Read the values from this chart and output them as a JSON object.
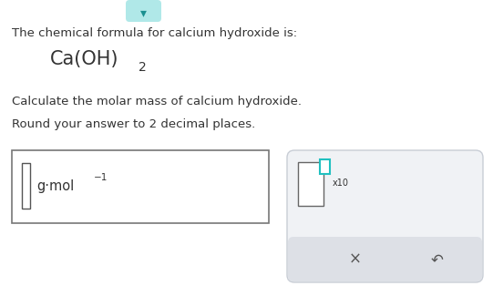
{
  "bg_color": "#ffffff",
  "text_color": "#333333",
  "line1": "The chemical formula for calcium hydroxide is:",
  "formula_main": "Ca(OH)",
  "formula_sub": "2",
  "line3": "Calculate the molar mass of calcium hydroxide.",
  "line4": "Round your answer to 2 decimal places.",
  "unit_text": "g·mol",
  "unit_exp": "−1",
  "x_symbol": "×",
  "undo_symbol": "↶",
  "x10_label": "x10",
  "teal_color": "#20c0c0",
  "gray_color": "#e0e0e0",
  "box_border": "#888888",
  "right_bg": "#f0f2f5",
  "right_border": "#c8cdd5"
}
